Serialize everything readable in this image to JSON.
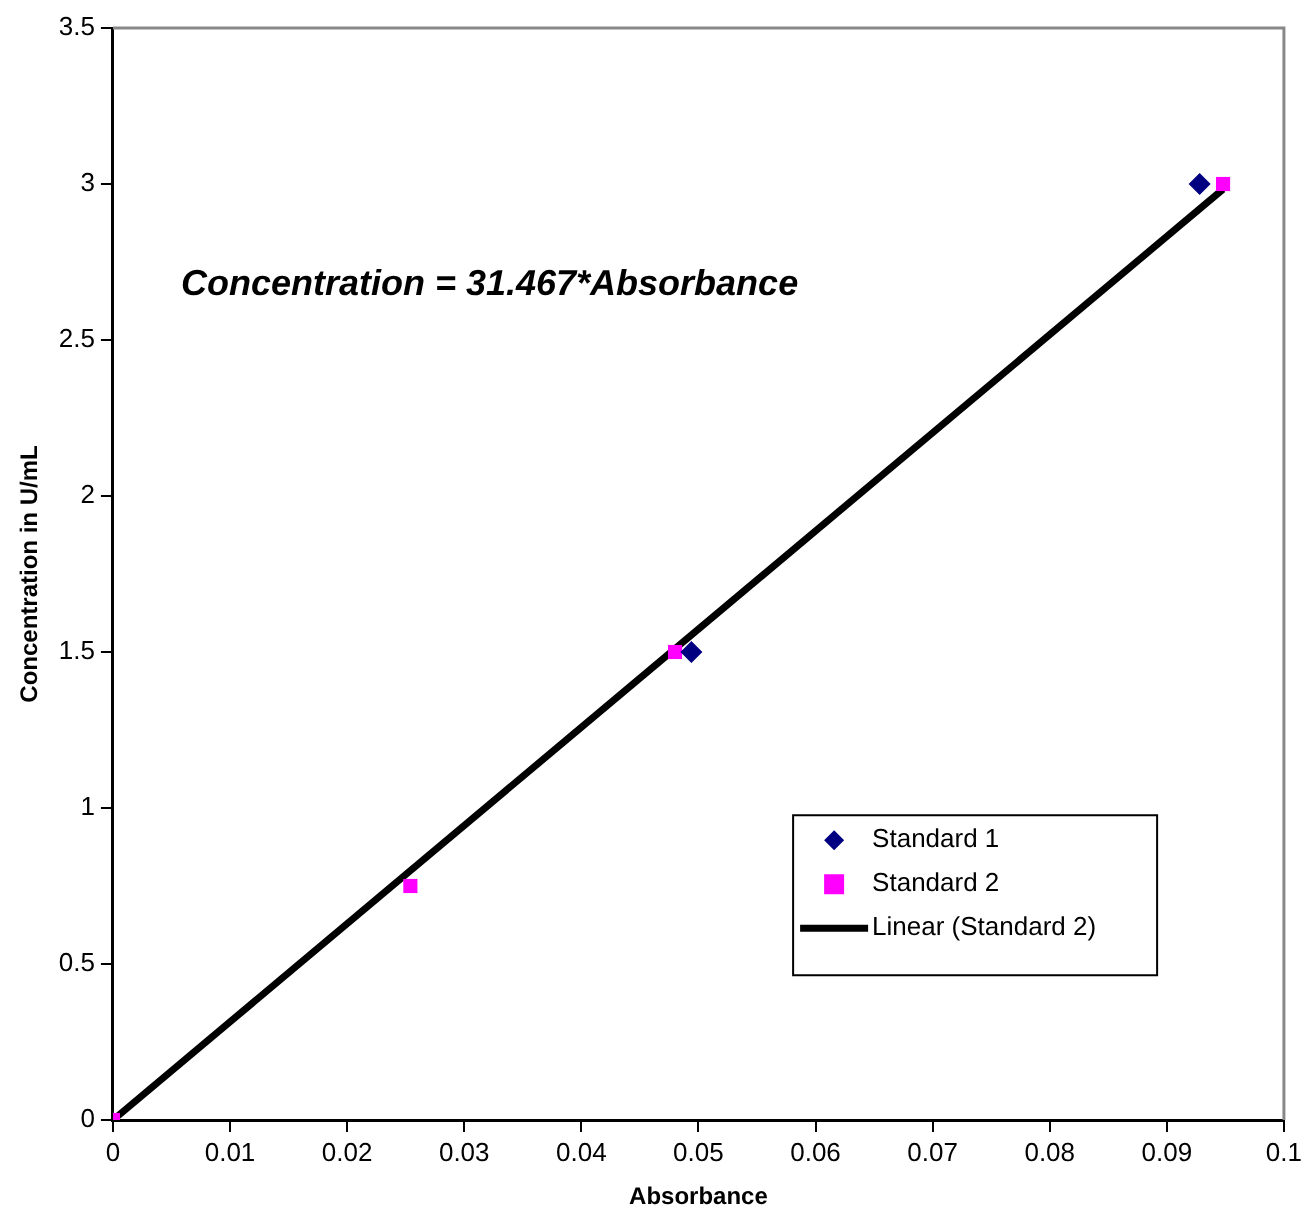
{
  "chart_data": {
    "type": "scatter",
    "xlabel": "Absorbance",
    "ylabel": "Concentration in U/mL",
    "annotations": [
      "Concentration = 31.467*Absorbance"
    ],
    "series": [
      {
        "name": "Standard 1",
        "type": "scatter",
        "color": "#000080",
        "marker": "diamond",
        "x": [
          0.0494,
          0.0928
        ],
        "values": [
          1.5,
          3
        ]
      },
      {
        "name": "Standard 2",
        "type": "scatter",
        "color": "#ff00ff",
        "marker": "square",
        "x": [
          0,
          0.0254,
          0.048,
          0.0948
        ],
        "values": [
          0,
          0.75,
          1.5,
          3
        ]
      },
      {
        "name": "Linear (Standard 2)",
        "type": "line",
        "color": "#000000",
        "marker": "none",
        "line_style": "solid",
        "x": [
          0,
          0.0948
        ],
        "values": [
          0,
          2.983
        ]
      }
    ],
    "xlim": [
      0,
      0.1
    ],
    "xticks": [
      0,
      0.01,
      0.02,
      0.03,
      0.04,
      0.05,
      0.06,
      0.07,
      0.08,
      0.09,
      0.1
    ],
    "ylim": [
      0,
      3.5
    ],
    "yticks": [
      0,
      0.5,
      1,
      1.5,
      2,
      2.5,
      3,
      3.5
    ],
    "grid": false,
    "legend": "bottom right"
  }
}
